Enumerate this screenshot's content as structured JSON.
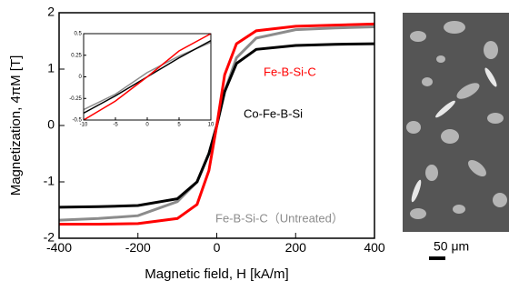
{
  "chart_data": [
    {
      "type": "line",
      "xlabel": "Magnetic field, H [kA/m]",
      "ylabel": "Magnetization, 4πM [T]",
      "x": [
        -400,
        -300,
        -200,
        -100,
        -50,
        -20,
        0,
        20,
        50,
        100,
        200,
        300,
        400
      ],
      "series": [
        {
          "name": "Fe-B-Si-C（Untreated）",
          "color": "#8c8c8c",
          "values": [
            -1.68,
            -1.65,
            -1.6,
            -1.35,
            -1.0,
            -0.5,
            0,
            0.6,
            1.2,
            1.55,
            1.7,
            1.73,
            1.75
          ]
        },
        {
          "name": "Co-Fe-B-Si",
          "color": "#000000",
          "values": [
            -1.45,
            -1.44,
            -1.42,
            -1.3,
            -1.0,
            -0.5,
            0,
            0.6,
            1.1,
            1.35,
            1.42,
            1.44,
            1.45
          ]
        },
        {
          "name": "Fe-B-Si-C",
          "color": "#ff0000",
          "values": [
            -1.75,
            -1.75,
            -1.74,
            -1.65,
            -1.4,
            -0.8,
            0,
            0.9,
            1.45,
            1.68,
            1.76,
            1.78,
            1.8
          ]
        }
      ],
      "xlim": [
        -400,
        400
      ],
      "ylim": [
        -2,
        2
      ],
      "xticks": [
        -400,
        -200,
        0,
        200,
        400
      ],
      "yticks": [
        -2,
        -1,
        0,
        1,
        2
      ]
    },
    {
      "type": "line",
      "x": [
        -10,
        -5,
        0,
        5,
        10
      ],
      "series": [
        {
          "color": "#8c8c8c",
          "values": [
            -0.38,
            -0.2,
            0.05,
            0.24,
            0.4
          ]
        },
        {
          "color": "#000000",
          "values": [
            -0.42,
            -0.22,
            0,
            0.22,
            0.42
          ]
        },
        {
          "color": "#ff0000",
          "values": [
            -0.5,
            -0.28,
            0,
            0.3,
            0.5
          ]
        }
      ],
      "xlim": [
        -10,
        10
      ],
      "ylim": [
        -0.5,
        0.5
      ],
      "xticks": [
        -10,
        -5,
        0,
        5,
        10
      ],
      "yticks": [
        -0.5,
        -0.25,
        0,
        0.25,
        0.5
      ]
    }
  ],
  "micrograph": {
    "scale_label": "50 μm"
  }
}
